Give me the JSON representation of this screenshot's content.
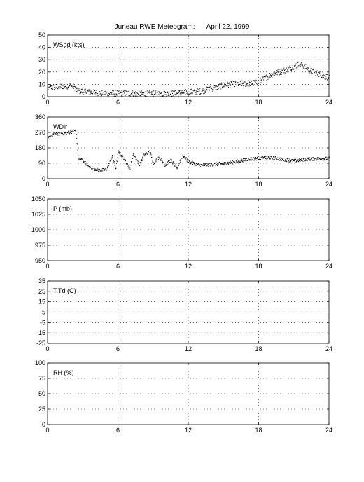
{
  "title": "Juneau RWE Meteogram:      April 22, 1999",
  "chart_data": [
    {
      "type": "scatter",
      "label": "WSpd (kts)",
      "xlim": [
        0,
        24
      ],
      "ylim": [
        0,
        50
      ],
      "xticks": [
        "0",
        "6",
        "12",
        "18",
        "24"
      ],
      "yticks": [
        "0",
        "10",
        "20",
        "30",
        "40",
        "50"
      ],
      "grid": true,
      "trend": [
        [
          0,
          7
        ],
        [
          0.5,
          8
        ],
        [
          1,
          8.5
        ],
        [
          1.5,
          9
        ],
        [
          2,
          9
        ],
        [
          2.3,
          8
        ],
        [
          2.5,
          5
        ],
        [
          3,
          4.5
        ],
        [
          4,
          3.5
        ],
        [
          5,
          3
        ],
        [
          6,
          3
        ],
        [
          7,
          3
        ],
        [
          8,
          2.5
        ],
        [
          9,
          2.5
        ],
        [
          10,
          2.5
        ],
        [
          11,
          3
        ],
        [
          12,
          4
        ],
        [
          13,
          4.5
        ],
        [
          14,
          7
        ],
        [
          15,
          9.5
        ],
        [
          16,
          10.5
        ],
        [
          17,
          11
        ],
        [
          17.8,
          11.5
        ],
        [
          18,
          12
        ],
        [
          18.5,
          15
        ],
        [
          19,
          18
        ],
        [
          20,
          21
        ],
        [
          20.5,
          23
        ],
        [
          21,
          25
        ],
        [
          21.5,
          27
        ],
        [
          22,
          24
        ],
        [
          22.5,
          21
        ],
        [
          23,
          19
        ],
        [
          23.5,
          17
        ],
        [
          24,
          16
        ]
      ],
      "spread": 2.5
    },
    {
      "type": "scatter",
      "label": "WDir",
      "xlim": [
        0,
        24
      ],
      "ylim": [
        0,
        360
      ],
      "xticks": [
        "0",
        "6",
        "12",
        "18",
        "24"
      ],
      "yticks": [
        "0",
        "90",
        "180",
        "270",
        "360"
      ],
      "grid": true,
      "trend": [
        [
          0,
          235
        ],
        [
          0.3,
          255
        ],
        [
          0.6,
          262
        ],
        [
          1,
          265
        ],
        [
          1.5,
          268
        ],
        [
          2,
          275
        ],
        [
          2.4,
          285
        ],
        [
          2.6,
          120
        ],
        [
          3,
          110
        ],
        [
          3.5,
          70
        ],
        [
          4,
          60
        ],
        [
          4.5,
          50
        ],
        [
          5,
          55
        ],
        [
          5.5,
          130
        ],
        [
          5.8,
          60
        ],
        [
          6,
          160
        ],
        [
          6.5,
          120
        ],
        [
          7,
          60
        ],
        [
          7.3,
          150
        ],
        [
          7.8,
          80
        ],
        [
          8.2,
          140
        ],
        [
          8.7,
          160
        ],
        [
          9,
          90
        ],
        [
          9.5,
          130
        ],
        [
          10,
          80
        ],
        [
          10.5,
          110
        ],
        [
          11,
          60
        ],
        [
          11.5,
          140
        ],
        [
          12,
          100
        ],
        [
          12.5,
          90
        ],
        [
          13,
          80
        ],
        [
          14,
          85
        ],
        [
          15,
          90
        ],
        [
          16,
          100
        ],
        [
          17,
          115
        ],
        [
          18,
          120
        ],
        [
          19,
          125
        ],
        [
          20,
          115
        ],
        [
          21,
          105
        ],
        [
          22,
          115
        ],
        [
          23,
          118
        ],
        [
          24,
          120
        ]
      ],
      "spread": 10
    },
    {
      "type": "scatter",
      "label": "P (mb)",
      "xlim": [
        0,
        24
      ],
      "ylim": [
        950,
        1050
      ],
      "xticks": [
        "0",
        "6",
        "12",
        "18",
        "24"
      ],
      "yticks": [
        "950",
        "975",
        "1000",
        "1025",
        "1050"
      ],
      "grid": true
    },
    {
      "type": "scatter",
      "label": "T,Td (C)",
      "xlim": [
        0,
        24
      ],
      "ylim": [
        -25,
        35
      ],
      "xticks": [
        "0",
        "6",
        "12",
        "18",
        "24"
      ],
      "yticks": [
        "-25",
        "-15",
        "-5",
        "5",
        "15",
        "25",
        "35"
      ],
      "grid": true
    },
    {
      "type": "scatter",
      "label": "RH (%)",
      "xlim": [
        0,
        24
      ],
      "ylim": [
        0,
        100
      ],
      "xticks": [
        "0",
        "6",
        "12",
        "18",
        "24"
      ],
      "yticks": [
        "0",
        "25",
        "50",
        "75",
        "100"
      ],
      "grid": true
    }
  ]
}
